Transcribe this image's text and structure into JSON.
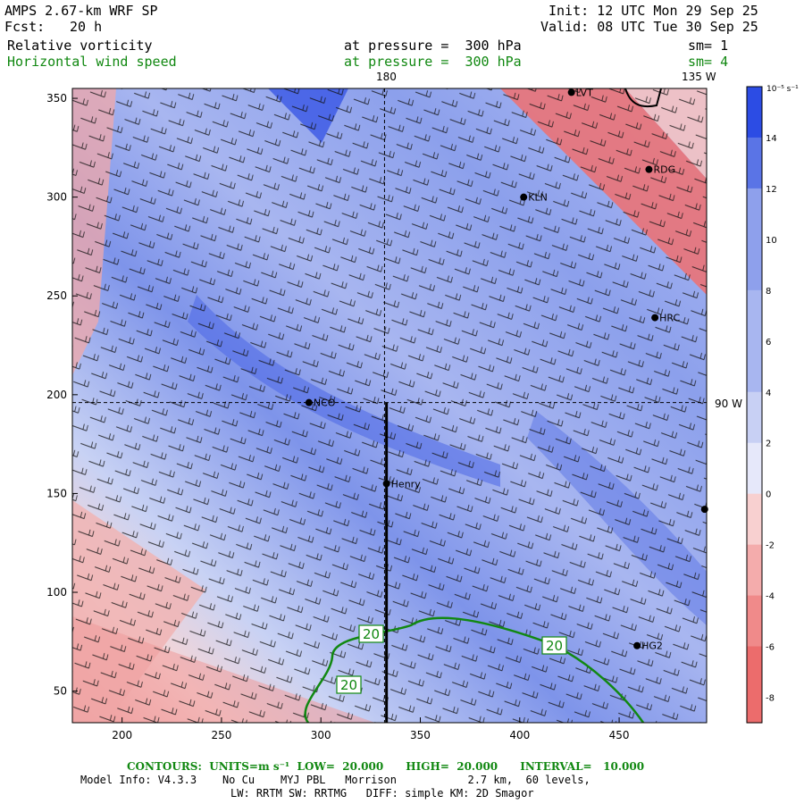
{
  "header": {
    "model": "AMPS 2.67-km WRF SP",
    "fcst_label": "Fcst:",
    "fcst_value": "20 h",
    "init": "Init: 12 UTC Mon 29 Sep 25",
    "valid": "Valid: 08 UTC Tue 30 Sep 25",
    "field1_name": "Relative vorticity",
    "field1_level": "at pressure =  300 hPa",
    "field1_sm": "sm= 1",
    "field2_name": "Horizontal wind speed",
    "field2_level": "at pressure =  300 hPa",
    "field2_sm": "sm= 4"
  },
  "map": {
    "meridian_label": "180",
    "meridian_135_label": "135 W",
    "parallel_label": "90 W",
    "stations": [
      {
        "name": "LVT",
        "x": 426,
        "y": 353
      },
      {
        "name": "RDG",
        "x": 465,
        "y": 314
      },
      {
        "name": "KLN",
        "x": 402,
        "y": 300
      },
      {
        "name": "HRC",
        "x": 468,
        "y": 239
      },
      {
        "name": "NCO",
        "x": 294,
        "y": 196
      },
      {
        "name": "Henry",
        "x": 333,
        "y": 155
      },
      {
        "name": "HG2",
        "x": 459,
        "y": 73
      },
      {
        "name": "",
        "x": 493,
        "y": 142
      }
    ],
    "contour_labels": [
      "20",
      "20",
      "20"
    ]
  },
  "chart_data": {
    "type": "heatmap",
    "title": "Relative vorticity",
    "xlabel": "",
    "ylabel": "",
    "xlim": [
      175,
      494
    ],
    "ylim": [
      34,
      355
    ],
    "xticks": [
      200,
      250,
      300,
      350,
      400,
      450
    ],
    "yticks": [
      50,
      100,
      150,
      200,
      250,
      300,
      350
    ],
    "colorbar": {
      "units": "10⁻⁵ s⁻¹",
      "ticks": [
        "14",
        "12",
        "10",
        "8",
        "6",
        "4",
        "2",
        "0",
        "-2",
        "-4",
        "-6",
        "-8"
      ],
      "range": [
        -9,
        16
      ]
    },
    "contour_legend": {
      "text": "CONTOURS:  UNITS=m s⁻¹  LOW=  20.000      HIGH=  20.000      INTERVAL=   10.000",
      "low": 20,
      "high": 20,
      "interval": 10,
      "units": "m s⁻¹"
    },
    "cross_section": {
      "x": 333,
      "y_start": 34,
      "y_end": 196
    },
    "meridian_x": 332,
    "parallel_y": 196
  },
  "footer": {
    "line1": "Model Info: V4.3.3    No Cu    MYJ PBL   Morrison           2.7 km,  60 levels,",
    "line2": "LW: RRTM SW: RRTMG   DIFF: simple KM: 2D Smagor"
  },
  "colors": {
    "neg_strong": "#ec6c6c",
    "neg_light": "#f8d0d0",
    "pos_light": "#c8d0f4",
    "pos_mid": "#8ea0ec",
    "pos_strong": "#2c4ce4",
    "contour": "#118811"
  }
}
